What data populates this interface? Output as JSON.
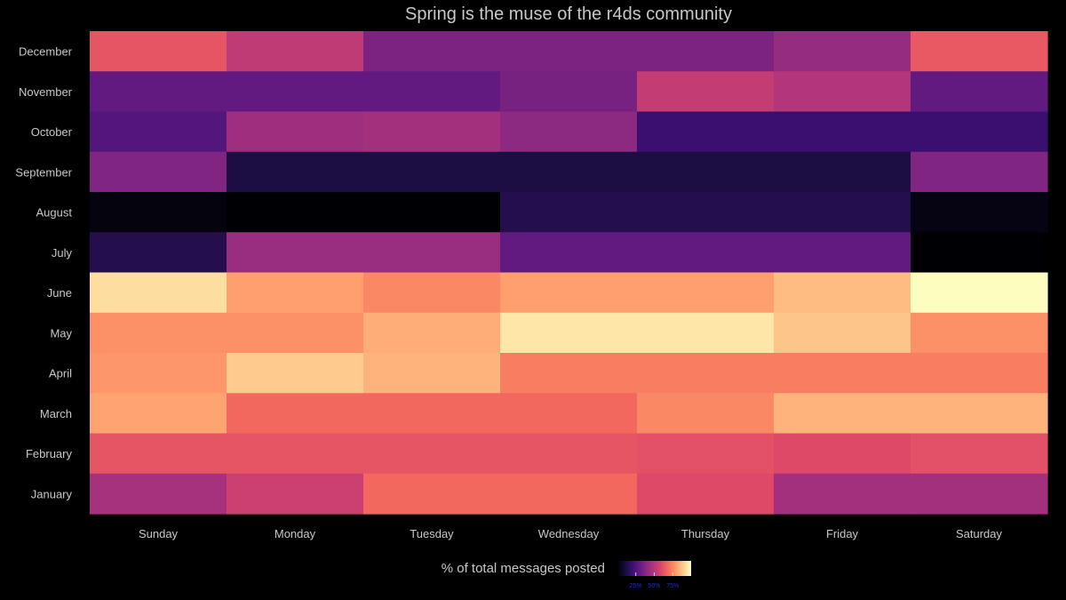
{
  "chart_data": {
    "type": "heatmap",
    "title": "Spring is the muse of the r4ds community",
    "x": [
      "Sunday",
      "Monday",
      "Tuesday",
      "Wednesday",
      "Thursday",
      "Friday",
      "Saturday"
    ],
    "y": [
      "December",
      "November",
      "October",
      "September",
      "August",
      "July",
      "June",
      "May",
      "April",
      "March",
      "February",
      "January"
    ],
    "values": [
      [
        0.63,
        0.52,
        0.36,
        0.36,
        0.36,
        0.42,
        0.64
      ],
      [
        0.3,
        0.3,
        0.3,
        0.35,
        0.53,
        0.49,
        0.3
      ],
      [
        0.26,
        0.44,
        0.45,
        0.4,
        0.2,
        0.2,
        0.2
      ],
      [
        0.37,
        0.12,
        0.12,
        0.12,
        0.12,
        0.12,
        0.37
      ],
      [
        0.02,
        0.0,
        0.0,
        0.14,
        0.14,
        0.14,
        0.03
      ],
      [
        0.14,
        0.43,
        0.43,
        0.3,
        0.3,
        0.3,
        0.0
      ],
      [
        0.93,
        0.8,
        0.75,
        0.8,
        0.8,
        0.86,
        1.0
      ],
      [
        0.77,
        0.77,
        0.83,
        0.95,
        0.95,
        0.88,
        0.77
      ],
      [
        0.78,
        0.89,
        0.84,
        0.73,
        0.73,
        0.73,
        0.73
      ],
      [
        0.81,
        0.68,
        0.68,
        0.68,
        0.75,
        0.84,
        0.84
      ],
      [
        0.63,
        0.63,
        0.63,
        0.63,
        0.62,
        0.6,
        0.62
      ],
      [
        0.46,
        0.55,
        0.68,
        0.68,
        0.6,
        0.45,
        0.45
      ]
    ],
    "legend": {
      "title": "% of total messages posted",
      "ticks": [
        "25%",
        "50%",
        "75%"
      ],
      "tick_values": [
        0.25,
        0.5,
        0.75
      ],
      "placement": "bottom"
    },
    "colorscale": "magma",
    "colors": {
      "background": "#000000",
      "text": "#c8c8c8",
      "legend_tick_text": "#2a2ad0"
    }
  }
}
